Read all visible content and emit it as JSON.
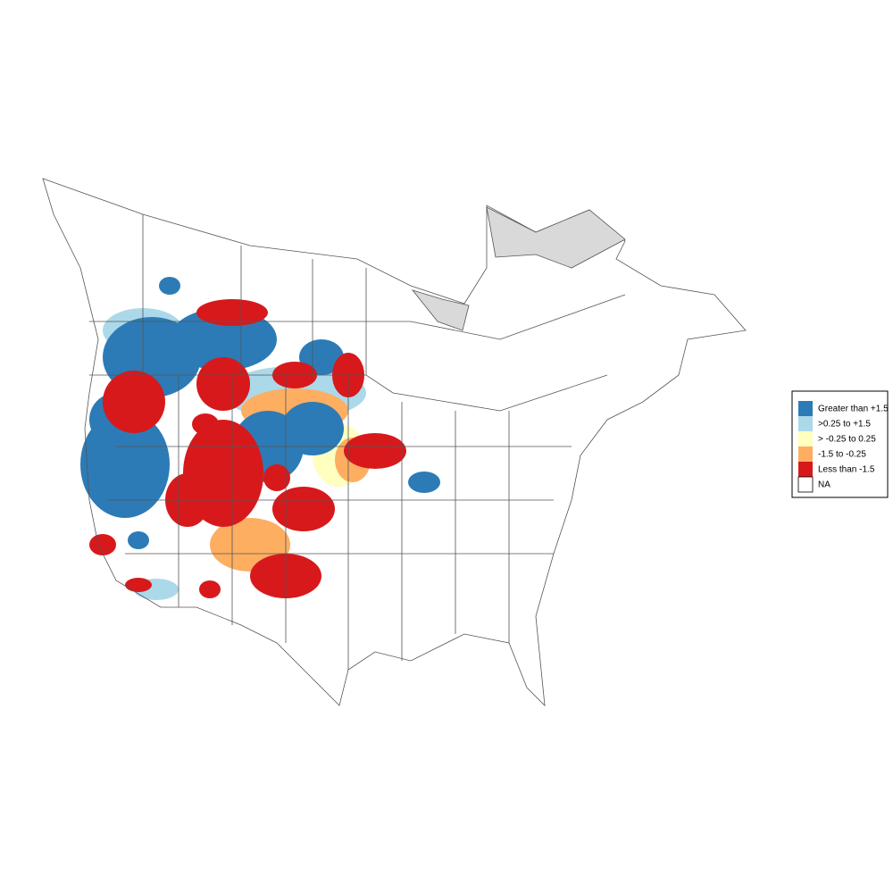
{
  "legend": {
    "items": [
      {
        "label": "Greater than +1.5",
        "color": "#2c7bb6"
      },
      {
        "label": ">0.25 to +1.5",
        "color": "#abd9e9"
      },
      {
        "label": "> -0.25 to 0.25",
        "color": "#ffffbf"
      },
      {
        "label": "-1.5 to -0.25",
        "color": "#fdae61"
      },
      {
        "label": "Less than -1.5",
        "color": "#d7191c"
      },
      {
        "label": "NA",
        "color": "#ffffff"
      }
    ]
  },
  "na_region_color": "#d9d9d9"
}
